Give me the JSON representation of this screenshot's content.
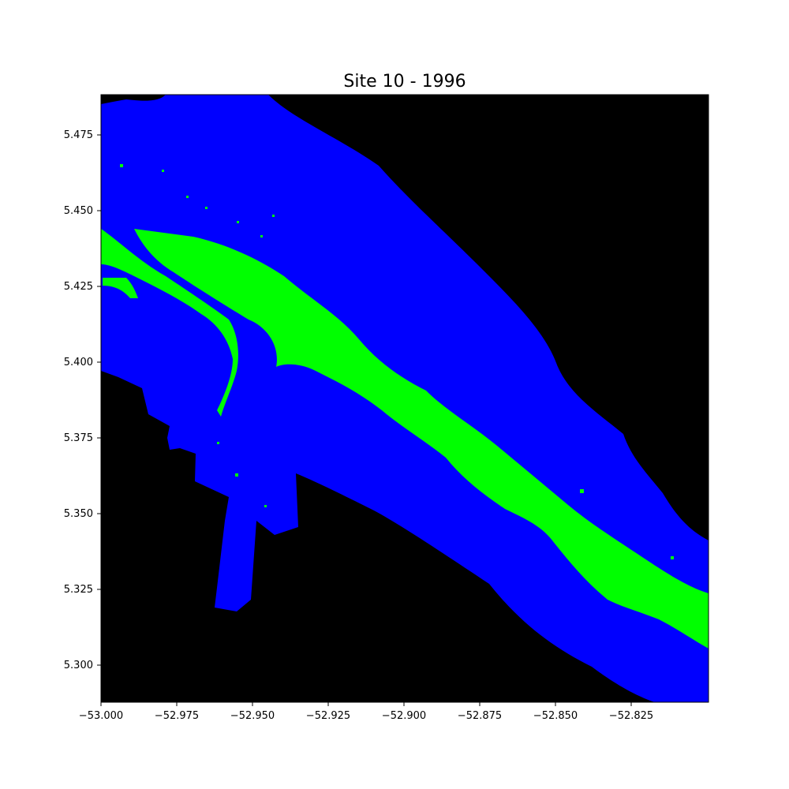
{
  "title": "Site 10 - 1996",
  "x_ticks": [
    "−53.000",
    "−52.975",
    "−52.950",
    "−52.925",
    "−52.900",
    "−52.875",
    "−52.850",
    "−52.825"
  ],
  "y_ticks": [
    "5.475",
    "5.450",
    "5.425",
    "5.400",
    "5.375",
    "5.350",
    "5.325",
    "5.300"
  ],
  "colors": {
    "background": "#000000",
    "water": "#0000ff",
    "vegetation": "#00ff00"
  }
}
